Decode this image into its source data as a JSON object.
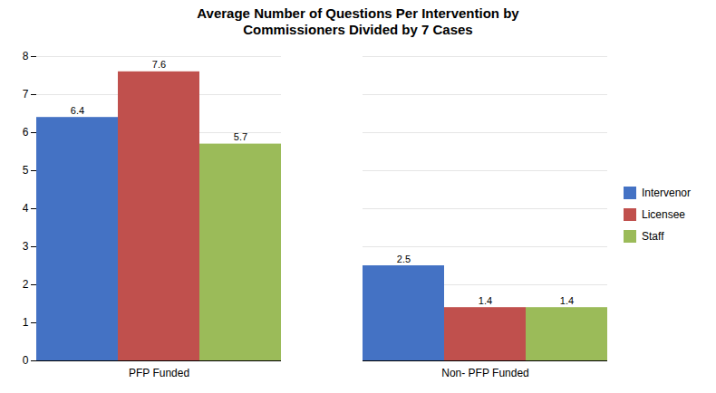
{
  "chart_data": {
    "type": "bar",
    "title": "Average Number of Questions Per Intervention by\nCommissioners Divided by 7 Cases",
    "categories": [
      "PFP Funded",
      "Non- PFP Funded"
    ],
    "series": [
      {
        "name": "Intervenor",
        "color": "#4472C4",
        "values": [
          6.4,
          2.5
        ]
      },
      {
        "name": "Licensee",
        "color": "#C0504D",
        "values": [
          7.6,
          1.4
        ]
      },
      {
        "name": "Staff",
        "color": "#9BBB59",
        "values": [
          5.7,
          1.4
        ]
      }
    ],
    "ylim": [
      0,
      8
    ],
    "yticks": [
      0,
      1,
      2,
      3,
      4,
      5,
      6,
      7,
      8
    ],
    "grid": true,
    "data_labels": true,
    "legend": "right"
  }
}
